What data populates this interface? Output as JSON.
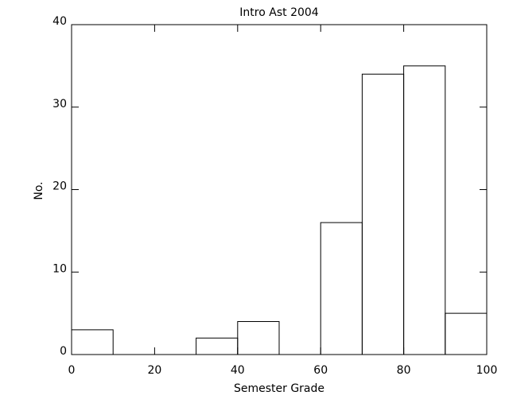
{
  "chart_data": {
    "type": "histogram",
    "title": "Intro Ast 2004",
    "x_label": "Semester Grade",
    "y_label": "No.",
    "bins": [
      0,
      10,
      20,
      30,
      40,
      50,
      60,
      70,
      80,
      90,
      100
    ],
    "counts": [
      3,
      0,
      0,
      2,
      4,
      0,
      16,
      34,
      35,
      5
    ],
    "color": "#000000",
    "xlim": [
      0,
      100
    ],
    "xticks": [
      0,
      20,
      40,
      60,
      80,
      100
    ],
    "ylim": [
      0,
      40
    ],
    "yticks": [
      0,
      10,
      20,
      30,
      40
    ]
  }
}
